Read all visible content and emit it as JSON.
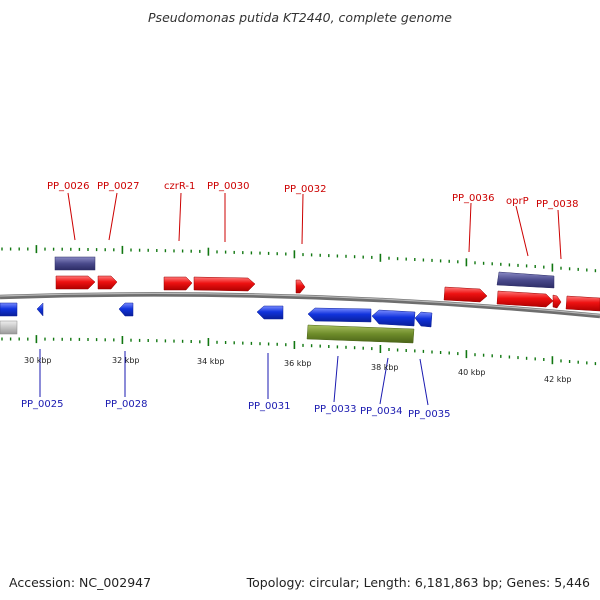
{
  "title": "Pseudomonas putida KT2440, complete genome",
  "accession_text": "Accession: NC_002947",
  "summary_text": "Topology: circular; Length: 6,181,863 bp; Genes: 5,446",
  "colors": {
    "forward_gene": "#ee1111",
    "reverse_gene": "#1133dd",
    "forward_label": "#cc0000",
    "reverse_label": "#1a1ab0",
    "tick": "#117711",
    "backbone": "#7a7a7a",
    "purple_feature": "#4a4a8c",
    "olive_feature": "#6e8c2a",
    "grey_feature": "#c4c4c4"
  },
  "scale_labels": [
    "30 kbp",
    "32 kbp",
    "34 kbp",
    "36 kbp",
    "38 kbp",
    "40 kbp",
    "42 kbp"
  ],
  "forward_gene_labels": [
    "PP_0026",
    "PP_0027",
    "czrR-1",
    "PP_0030",
    "PP_0032",
    "PP_0036",
    "oprP",
    "PP_0038"
  ],
  "reverse_gene_labels": [
    "PP_0025",
    "PP_0028",
    "PP_0031",
    "PP_0033",
    "PP_0034",
    "PP_0035"
  ]
}
